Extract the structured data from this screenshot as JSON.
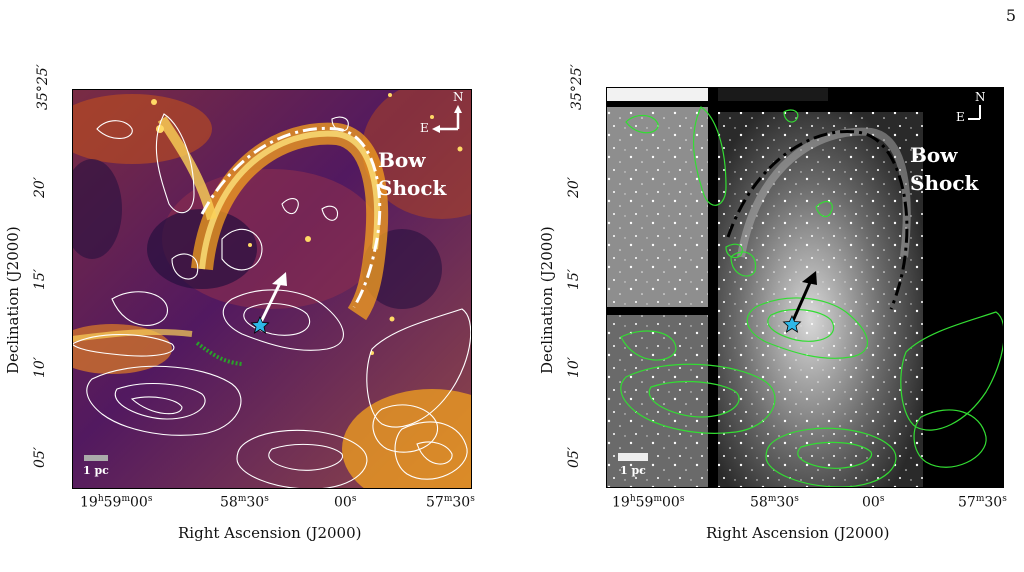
{
  "page_number": "5",
  "colors": {
    "left_contours": "#ffffff",
    "right_contours": "#33dd33",
    "star": "#2fb8e8",
    "filament": "#2aa02a"
  },
  "panels": [
    {
      "id": "left",
      "image": "false-color map (inferno colormap) with white contours",
      "dec_ticks": [
        "35°25′",
        "20′",
        "15′",
        "10′",
        "05′"
      ],
      "ra_ticks": [
        "19h59m00s",
        "58m30s",
        "00s",
        "57m30s"
      ],
      "ra_ticks_parts": [
        {
          "main": "19",
          "sup1": "h",
          "mid": "59",
          "sup2": "m",
          "tail": "00",
          "sup3": "s"
        },
        {
          "main": "58",
          "sup1": "m",
          "mid": "30",
          "sup2": "s",
          "tail": "",
          "sup3": ""
        },
        {
          "main": "00",
          "sup1": "s",
          "mid": "",
          "sup2": "",
          "tail": "",
          "sup3": ""
        },
        {
          "main": "57",
          "sup1": "m",
          "mid": "30",
          "sup2": "s",
          "tail": "",
          "sup3": ""
        }
      ],
      "xlabel": "Right Ascension (J2000)",
      "ylabel": "Declination (J2000)",
      "annotation": [
        "Bow",
        "Shock"
      ],
      "scale_bar": "1 pc",
      "compass": {
        "north": "N",
        "east": "E"
      }
    },
    {
      "id": "right",
      "image": "greyscale optical mosaic with green contours",
      "dec_ticks": [
        "35°25′",
        "20′",
        "15′",
        "10′",
        "05′"
      ],
      "ra_ticks_parts": [
        {
          "main": "19",
          "sup1": "h",
          "mid": "59",
          "sup2": "m",
          "tail": "00",
          "sup3": "s"
        },
        {
          "main": "58",
          "sup1": "m",
          "mid": "30",
          "sup2": "s",
          "tail": "",
          "sup3": ""
        },
        {
          "main": "00",
          "sup1": "s",
          "mid": "",
          "sup2": "",
          "tail": "",
          "sup3": ""
        },
        {
          "main": "57",
          "sup1": "m",
          "mid": "30",
          "sup2": "s",
          "tail": "",
          "sup3": ""
        }
      ],
      "xlabel": "Right Ascension (J2000)",
      "ylabel": "Declination (J2000)",
      "annotation": [
        "Bow",
        "Shock"
      ],
      "scale_bar": "1 pc",
      "compass": {
        "north": "N",
        "east": "E"
      }
    }
  ]
}
